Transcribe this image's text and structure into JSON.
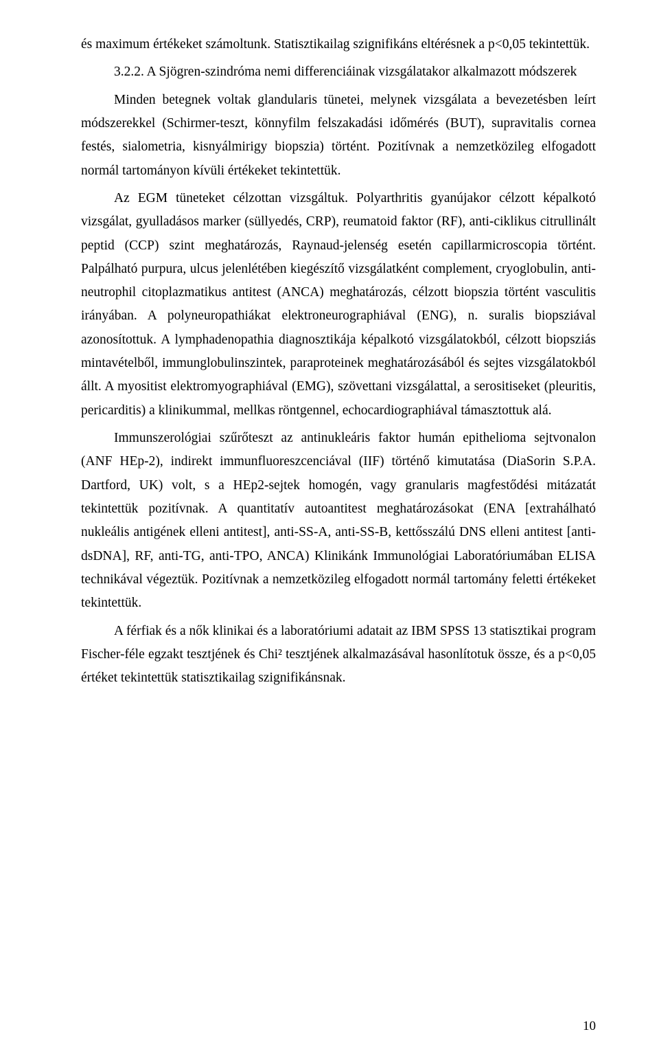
{
  "pageNumber": "10",
  "paragraphs": [
    {
      "indent": false,
      "text": "és maximum értékeket számoltunk. Statisztikailag szignifikáns eltérésnek a p<0,05 tekintettük."
    },
    {
      "indent": true,
      "text": "3.2.2. A Sjögren-szindróma nemi differenciáinak vizsgálatakor alkalmazott módszerek"
    },
    {
      "indent": true,
      "text": "Minden betegnek voltak glandularis tünetei, melynek vizsgálata a bevezetésben leírt módszerekkel (Schirmer-teszt, könnyfilm felszakadási időmérés (BUT), supravitalis cornea festés, sialometria, kisnyálmirigy biopszia) történt. Pozitívnak a nemzetközileg elfogadott normál tartományon kívüli értékeket tekintettük."
    },
    {
      "indent": true,
      "text": "Az EGM tüneteket célzottan vizsgáltuk. Polyarthritis gyanújakor célzott képalkotó vizsgálat, gyulladásos marker (süllyedés, CRP), reumatoid faktor (RF), anti-ciklikus citrullinált peptid (CCP) szint meghatározás, Raynaud-jelenség esetén capillarmicroscopia történt. Palpálható purpura, ulcus jelenlétében kiegészítő vizsgálatként complement, cryoglobulin, anti-neutrophil citoplazmatikus antitest (ANCA) meghatározás, célzott biopszia történt vasculitis irányában. A polyneuropathiákat elektroneurographiával (ENG), n. suralis biopsziával azonosítottuk. A lymphadenopathia diagnosztikája képalkotó vizsgálatokból, célzott biopsziás mintavételből, immunglobulinszintek, paraproteinek meghatározásából és sejtes vizsgálatokból állt. A myositist elektromyographiával (EMG), szövettani vizsgálattal, a serositiseket (pleuritis, pericarditis) a klinikummal, mellkas röntgennel, echocardiographiával támasztottuk alá."
    },
    {
      "indent": true,
      "text": "Immunszerológiai szűrőteszt az antinukleáris faktor humán epithelioma sejtvonalon (ANF HEp-2), indirekt immunfluoreszcenciával (IIF) történő kimutatása (DiaSorin S.P.A. Dartford, UK) volt, s a HEp2-sejtek homogén, vagy granularis magfestődési mitázatát tekintettük pozitívnak. A quantitatív autoantitest meghatározásokat (ENA [extrahálható nukleális antigének elleni antitest], anti-SS-A, anti-SS-B, kettősszálú DNS elleni antitest [anti-dsDNA], RF, anti-TG, anti-TPO, ANCA) Klinikánk Immunológiai Laboratóriumában ELISA technikával végeztük. Pozitívnak a nemzetközileg elfogadott normál tartomány feletti értékeket tekintettük."
    },
    {
      "indent": true,
      "text": "A férfiak és a nők klinikai és a laboratóriumi adatait az IBM SPSS 13 statisztikai program Fischer-féle egzakt tesztjének és Chi² tesztjének alkalmazásával hasonlítotuk össze, és a p<0,05 értéket tekintettük statisztikailag szignifikánsnak."
    }
  ]
}
